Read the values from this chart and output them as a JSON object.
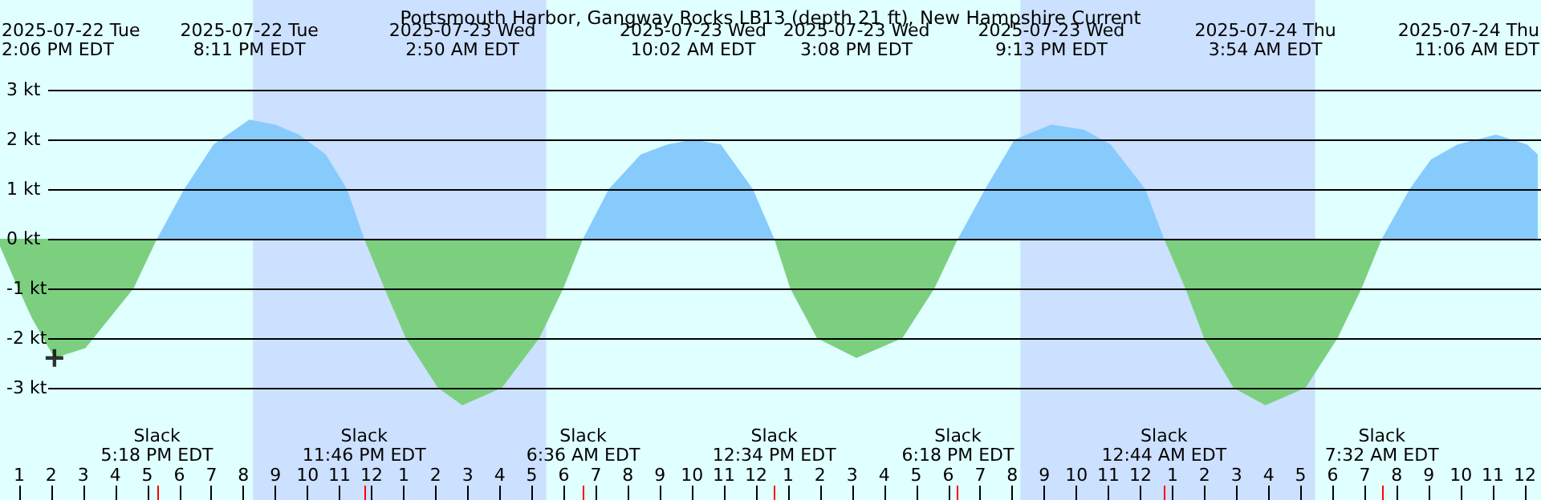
{
  "chart_data": {
    "type": "area",
    "title": "Portsmouth Harbor, Gangway Rocks LB13 (depth 21 ft), New Hampshire Current",
    "xlim": [
      "2025-07-22T12:24",
      "2025-07-24T12:24"
    ],
    "ylim": [
      -5.26,
      4.81
    ],
    "xticks": [
      {
        "value": "2025-07-22T13:00",
        "label": "1"
      },
      {
        "value": "2025-07-22T14:00",
        "label": "2"
      },
      {
        "value": "2025-07-22T15:00",
        "label": "3"
      },
      {
        "value": "2025-07-22T16:00",
        "label": "4"
      },
      {
        "value": "2025-07-22T17:00",
        "label": "5"
      },
      {
        "value": "2025-07-22T18:00",
        "label": "6"
      },
      {
        "value": "2025-07-22T19:00",
        "label": "7"
      },
      {
        "value": "2025-07-22T20:00",
        "label": "8"
      },
      {
        "value": "2025-07-22T21:00",
        "label": "9"
      },
      {
        "value": "2025-07-22T22:00",
        "label": "10"
      },
      {
        "value": "2025-07-22T23:00",
        "label": "11"
      },
      {
        "value": "2025-07-23T00:00",
        "label": "12"
      },
      {
        "value": "2025-07-23T01:00",
        "label": "1"
      },
      {
        "value": "2025-07-23T02:00",
        "label": "2"
      },
      {
        "value": "2025-07-23T03:00",
        "label": "3"
      },
      {
        "value": "2025-07-23T04:00",
        "label": "4"
      },
      {
        "value": "2025-07-23T05:00",
        "label": "5"
      },
      {
        "value": "2025-07-23T06:00",
        "label": "6"
      },
      {
        "value": "2025-07-23T07:00",
        "label": "7"
      },
      {
        "value": "2025-07-23T08:00",
        "label": "8"
      },
      {
        "value": "2025-07-23T09:00",
        "label": "9"
      },
      {
        "value": "2025-07-23T10:00",
        "label": "10"
      },
      {
        "value": "2025-07-23T11:00",
        "label": "11"
      },
      {
        "value": "2025-07-23T12:00",
        "label": "12"
      },
      {
        "value": "2025-07-23T13:00",
        "label": "1"
      },
      {
        "value": "2025-07-23T14:00",
        "label": "2"
      },
      {
        "value": "2025-07-23T15:00",
        "label": "3"
      },
      {
        "value": "2025-07-23T16:00",
        "label": "4"
      },
      {
        "value": "2025-07-23T17:00",
        "label": "5"
      },
      {
        "value": "2025-07-23T18:00",
        "label": "6"
      },
      {
        "value": "2025-07-23T19:00",
        "label": "7"
      },
      {
        "value": "2025-07-23T20:00",
        "label": "8"
      },
      {
        "value": "2025-07-23T21:00",
        "label": "9"
      },
      {
        "value": "2025-07-23T22:00",
        "label": "10"
      },
      {
        "value": "2025-07-23T23:00",
        "label": "11"
      },
      {
        "value": "2025-07-24T00:00",
        "label": "12"
      },
      {
        "value": "2025-07-24T01:00",
        "label": "1"
      },
      {
        "value": "2025-07-24T02:00",
        "label": "2"
      },
      {
        "value": "2025-07-24T03:00",
        "label": "3"
      },
      {
        "value": "2025-07-24T04:00",
        "label": "4"
      },
      {
        "value": "2025-07-24T05:00",
        "label": "5"
      },
      {
        "value": "2025-07-24T06:00",
        "label": "6"
      },
      {
        "value": "2025-07-24T07:00",
        "label": "7"
      },
      {
        "value": "2025-07-24T08:00",
        "label": "8"
      },
      {
        "value": "2025-07-24T09:00",
        "label": "9"
      },
      {
        "value": "2025-07-24T10:00",
        "label": "10"
      },
      {
        "value": "2025-07-24T11:00",
        "label": "11"
      },
      {
        "value": "2025-07-24T12:00",
        "label": "12"
      }
    ],
    "yticks": [
      {
        "value": -3,
        "label": "-3 kt"
      },
      {
        "value": -2,
        "label": "-2 kt"
      },
      {
        "value": -1,
        "label": "-1 kt"
      },
      {
        "value": 0,
        "label": "0 kt"
      },
      {
        "value": 1,
        "label": "1 kt"
      },
      {
        "value": 2,
        "label": "2 kt"
      },
      {
        "value": 3,
        "label": "3 kt"
      }
    ],
    "grid": "y",
    "series": [
      {
        "color": "#87cbfd",
        "x": [
          "2025-07-22T17:18",
          "2025-07-22T18:09",
          "2025-07-22T19:04",
          "2025-07-22T20:11",
          "2025-07-22T20:59",
          "2025-07-22T21:44",
          "2025-07-22T22:34",
          "2025-07-22T23:14",
          "2025-07-22T23:46",
          "2025-07-23T03:00",
          "2025-07-23T06:36",
          "2025-07-23T07:24",
          "2025-07-23T08:24",
          "2025-07-23T09:14",
          "2025-07-23T10:02",
          "2025-07-23T10:54",
          "2025-07-23T11:54",
          "2025-07-23T12:34",
          "2025-07-23T15:00",
          "2025-07-23T18:18",
          "2025-07-23T19:09",
          "2025-07-23T20:04",
          "2025-07-23T21:13",
          "2025-07-23T22:14",
          "2025-07-23T23:04",
          "2025-07-24T00:09",
          "2025-07-24T00:44",
          "2025-07-24T04:00",
          "2025-07-24T07:32",
          "2025-07-24T08:24",
          "2025-07-24T09:04",
          "2025-07-24T09:54",
          "2025-07-24T11:06",
          "2025-07-24T12:04",
          "2025-07-24T12:24"
        ],
        "values": [
          0,
          1.0,
          1.9,
          2.4,
          2.3,
          2.1,
          1.7,
          1.0,
          0,
          null,
          0,
          1.0,
          1.7,
          1.9,
          2.0,
          1.9,
          1.0,
          0,
          null,
          0,
          1.0,
          2.0,
          2.3,
          2.2,
          1.9,
          1.0,
          0,
          null,
          0,
          1.0,
          1.6,
          1.9,
          2.1,
          1.9,
          1.7
        ]
      },
      {
        "color": "#7ccf7f",
        "x": [
          "2025-07-22T12:24",
          "2025-07-22T12:54",
          "2025-07-22T13:24",
          "2025-07-22T14:06",
          "2025-07-22T15:04",
          "2025-07-22T16:34",
          "2025-07-22T17:18",
          "2025-07-22T20:00",
          "2025-07-22T23:46",
          "2025-07-23T00:24",
          "2025-07-23T01:04",
          "2025-07-23T02:04",
          "2025-07-23T02:50",
          "2025-07-23T04:04",
          "2025-07-23T05:14",
          "2025-07-23T05:59",
          "2025-07-23T06:36",
          "2025-07-23T09:00",
          "2025-07-23T12:34",
          "2025-07-23T13:04",
          "2025-07-23T13:54",
          "2025-07-23T15:08",
          "2025-07-23T16:34",
          "2025-07-23T17:34",
          "2025-07-23T18:18",
          "2025-07-23T21:00",
          "2025-07-24T00:44",
          "2025-07-24T01:24",
          "2025-07-24T01:59",
          "2025-07-24T02:54",
          "2025-07-24T03:54",
          "2025-07-24T05:09",
          "2025-07-24T06:09",
          "2025-07-24T06:54",
          "2025-07-24T07:32"
        ],
        "values": [
          -0.15,
          -0.9,
          -1.6,
          -2.4,
          -2.2,
          -1.0,
          0,
          null,
          0,
          -1.0,
          -2.0,
          -3.0,
          -3.35,
          -3.0,
          -2.0,
          -1.0,
          0,
          null,
          0,
          -1.0,
          -2.0,
          -2.4,
          -2.0,
          -1.0,
          0,
          null,
          0,
          -1.0,
          -2.0,
          -3.0,
          -3.35,
          -3.0,
          -2.0,
          -1.0,
          0
        ]
      },
      {
        "type": "scatter",
        "color": "#000000",
        "marker": "cross",
        "x": [
          "2025-07-22T14:06"
        ],
        "values": [
          -2.4
        ]
      }
    ],
    "bands": [
      {
        "axis": "x",
        "from": "2025-07-22T20:18",
        "to": "2025-07-23T05:27",
        "color": "#cce0ff"
      },
      {
        "axis": "x",
        "from": "2025-07-23T20:15",
        "to": "2025-07-24T05:27",
        "color": "#cce0ff"
      }
    ],
    "annotations": [
      "2025-07-22 Tue\n2:06 PM EDT",
      "2025-07-22 Tue\n8:11 PM EDT",
      "2025-07-23 Wed\n2:50 AM EDT",
      "2025-07-23 Wed\n10:02 AM EDT",
      "2025-07-23 Wed\n3:08 PM EDT",
      "2025-07-23 Wed\n9:13 PM EDT",
      "2025-07-24 Thu\n3:54 AM EDT",
      "2025-07-24 Thu\n11:06 AM EDT",
      "Slack\n5:18 PM EDT",
      "Slack\n11:46 PM EDT",
      "Slack\n6:36 AM EDT",
      "Slack\n12:34 PM EDT",
      "Slack\n6:18 PM EDT",
      "Slack\n12:44 AM EDT",
      "Slack\n7:32 AM EDT"
    ]
  }
}
